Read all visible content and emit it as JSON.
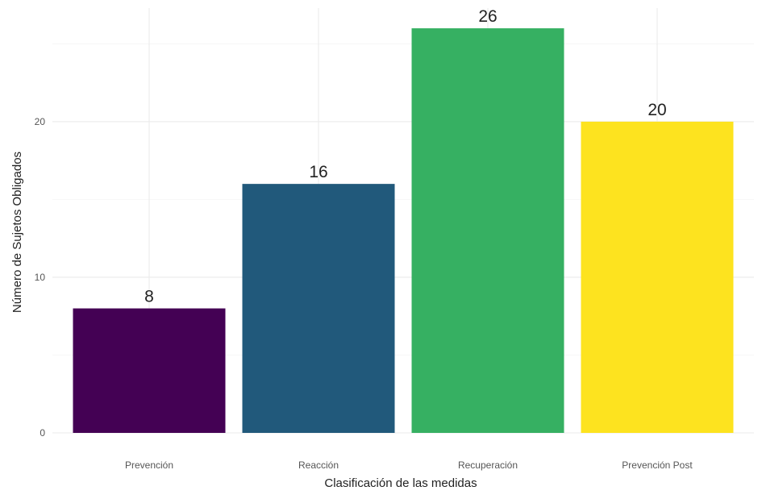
{
  "chart_data": {
    "type": "bar",
    "categories": [
      "Prevención",
      "Reacción",
      "Recuperación",
      "Prevención Post"
    ],
    "values": [
      8,
      16,
      26,
      20
    ],
    "data_labels": [
      "8",
      "16",
      "26",
      "20"
    ],
    "colors": [
      "#440154",
      "#21597B",
      "#36B062",
      "#FDE31F"
    ],
    "title": "",
    "xlabel": "Clasificación de las medidas",
    "ylabel": "Número de Sujetos Obligados",
    "ylim": [
      0,
      27.3
    ],
    "yticks": [
      0,
      10,
      20
    ],
    "ytick_labels": [
      "0",
      "10",
      "20"
    ],
    "grid": true,
    "legend": "none"
  }
}
